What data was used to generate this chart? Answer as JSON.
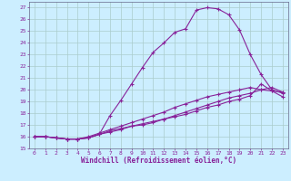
{
  "title": "",
  "xlabel": "Windchill (Refroidissement éolien,°C)",
  "ylabel": "",
  "bg_color": "#cceeff",
  "grid_color": "#aacccc",
  "line_color": "#882299",
  "xlim": [
    -0.5,
    23.5
  ],
  "ylim": [
    15.0,
    27.5
  ],
  "xticks": [
    0,
    1,
    2,
    3,
    4,
    5,
    6,
    7,
    8,
    9,
    10,
    11,
    12,
    13,
    14,
    15,
    16,
    17,
    18,
    19,
    20,
    21,
    22,
    23
  ],
  "yticks": [
    15,
    16,
    17,
    18,
    19,
    20,
    21,
    22,
    23,
    24,
    25,
    26,
    27
  ],
  "line1_x": [
    0,
    1,
    2,
    3,
    4,
    5,
    6,
    7,
    8,
    9,
    10,
    11,
    12,
    13,
    14,
    15,
    16,
    17,
    18,
    19,
    20,
    21,
    22,
    23
  ],
  "line1_y": [
    16.0,
    16.0,
    15.9,
    15.8,
    15.8,
    15.9,
    16.2,
    17.8,
    19.1,
    20.5,
    21.9,
    23.2,
    24.0,
    24.9,
    25.2,
    26.8,
    27.0,
    26.9,
    26.4,
    25.1,
    23.0,
    21.3,
    20.0,
    19.7
  ],
  "line2_x": [
    0,
    1,
    2,
    3,
    4,
    5,
    6,
    7,
    8,
    9,
    10,
    11,
    12,
    13,
    14,
    15,
    16,
    17,
    18,
    19,
    20,
    21,
    22,
    23
  ],
  "line2_y": [
    16.0,
    16.0,
    15.9,
    15.8,
    15.8,
    15.9,
    16.2,
    16.5,
    16.7,
    16.9,
    17.1,
    17.3,
    17.5,
    17.8,
    18.1,
    18.4,
    18.7,
    19.0,
    19.3,
    19.5,
    19.7,
    20.0,
    20.2,
    19.8
  ],
  "line3_x": [
    0,
    1,
    2,
    3,
    4,
    5,
    6,
    7,
    8,
    9,
    10,
    11,
    12,
    13,
    14,
    15,
    16,
    17,
    18,
    19,
    20,
    21,
    22,
    23
  ],
  "line3_y": [
    16.0,
    16.0,
    15.9,
    15.8,
    15.8,
    15.9,
    16.2,
    16.4,
    16.6,
    16.9,
    17.0,
    17.2,
    17.5,
    17.7,
    17.9,
    18.2,
    18.5,
    18.7,
    19.0,
    19.2,
    19.5,
    20.5,
    19.9,
    19.4
  ],
  "line4_x": [
    0,
    1,
    2,
    3,
    4,
    5,
    6,
    7,
    8,
    9,
    10,
    11,
    12,
    13,
    14,
    15,
    16,
    17,
    18,
    19,
    20,
    21,
    22,
    23
  ],
  "line4_y": [
    16.0,
    16.0,
    15.9,
    15.8,
    15.8,
    16.0,
    16.3,
    16.6,
    16.9,
    17.2,
    17.5,
    17.8,
    18.1,
    18.5,
    18.8,
    19.1,
    19.4,
    19.6,
    19.8,
    20.0,
    20.2,
    20.0,
    19.9,
    19.8
  ]
}
